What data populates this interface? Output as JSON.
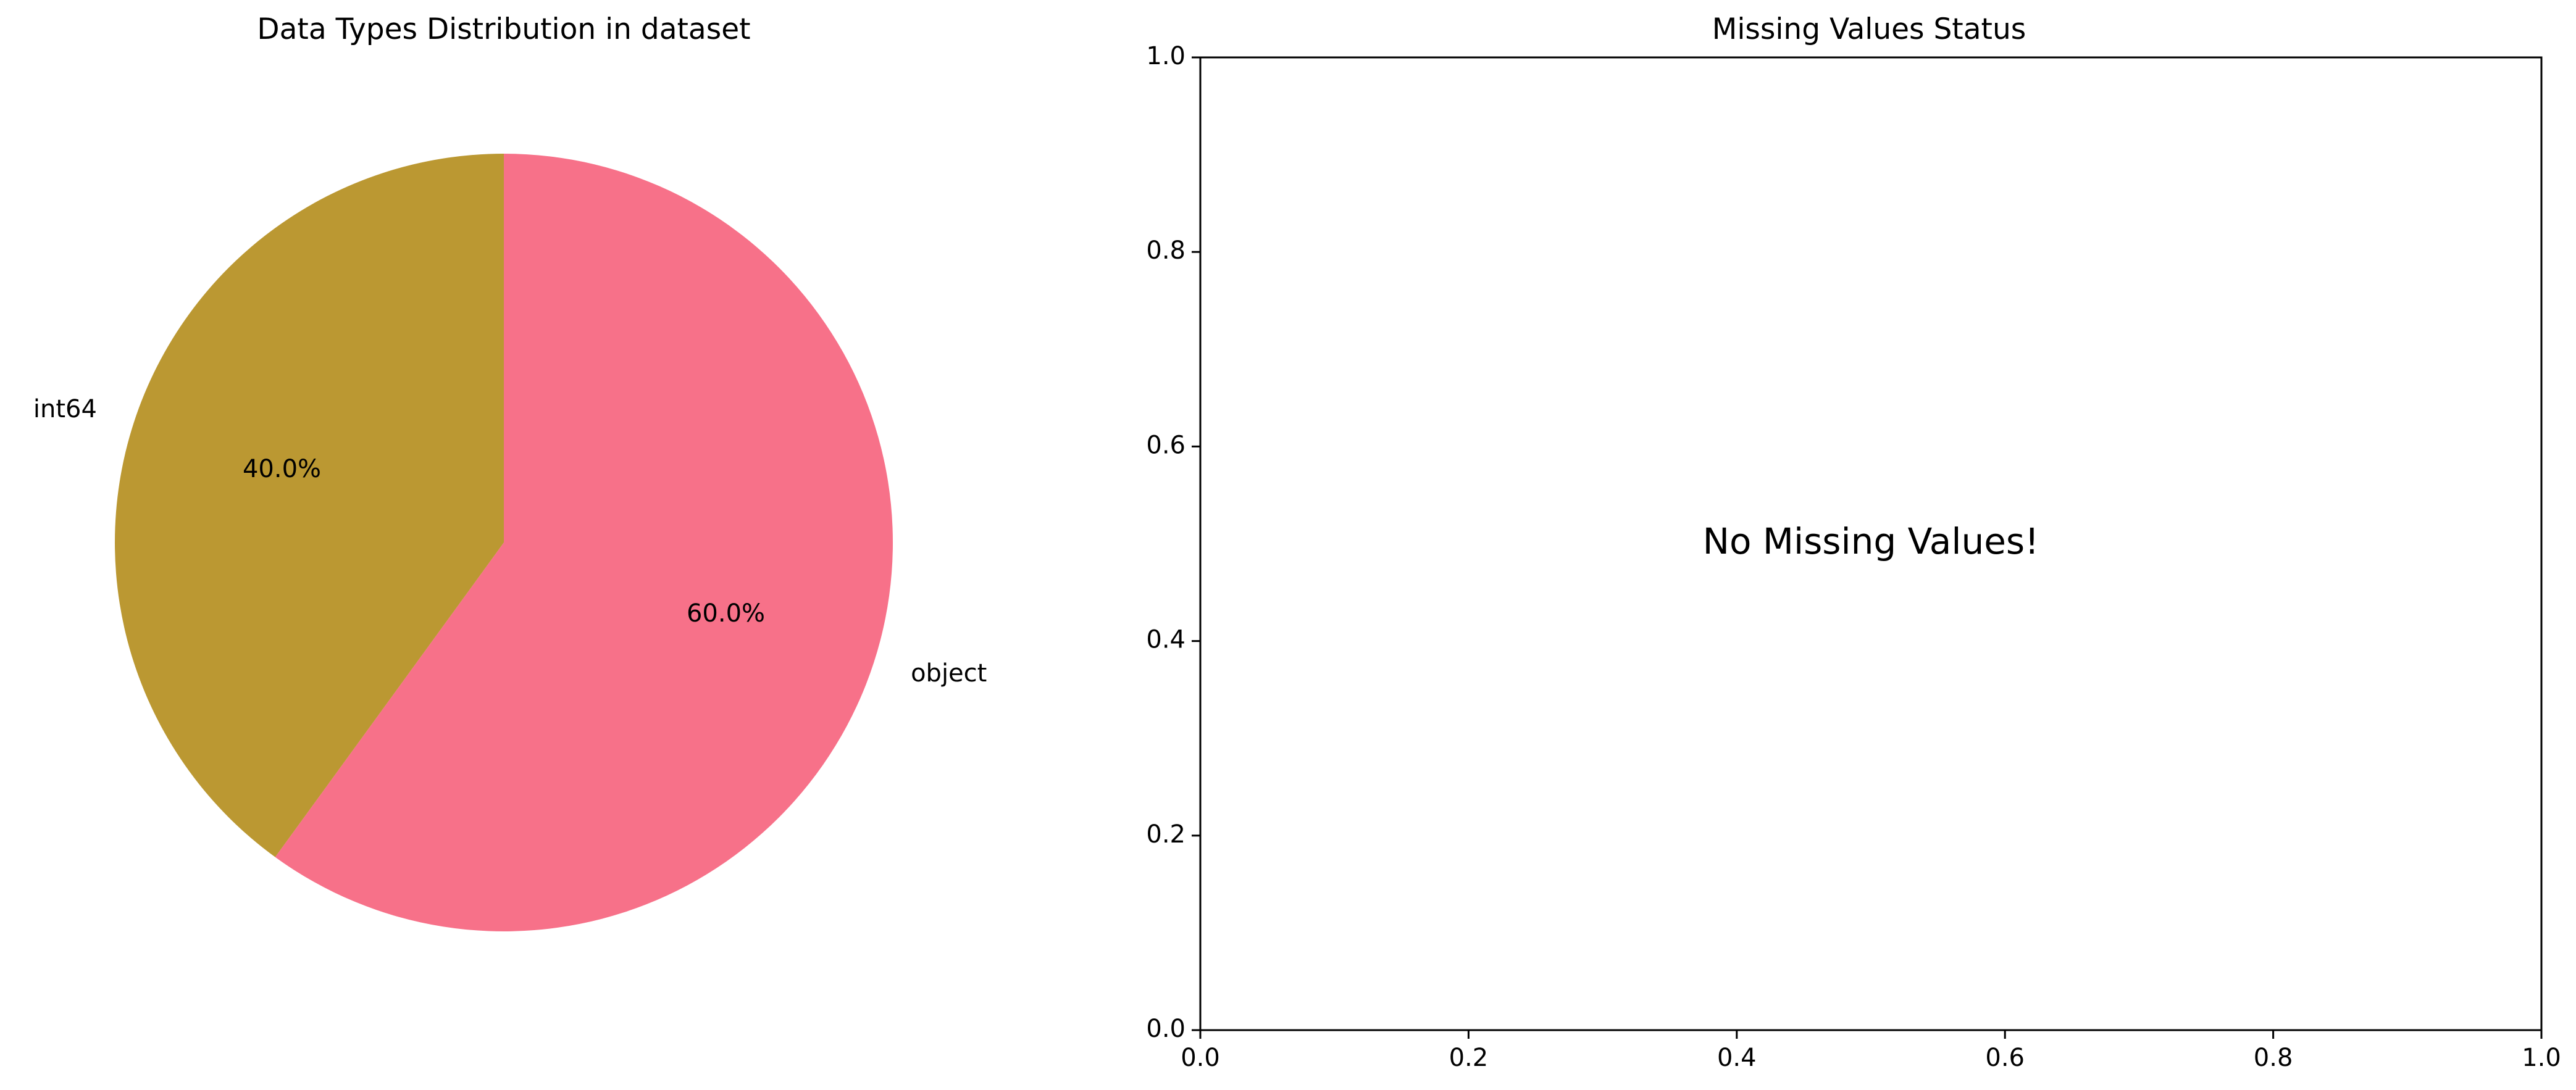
{
  "chart_data": [
    {
      "type": "pie",
      "title": "Data Types Distribution in dataset",
      "slices": [
        {
          "label": "object",
          "value": 60.0,
          "pct_label": "60.0%",
          "color": "#f77189"
        },
        {
          "label": "int64",
          "value": 40.0,
          "pct_label": "40.0%",
          "color": "#bb9832"
        }
      ],
      "start_angle_deg": 90,
      "direction": "clockwise"
    },
    {
      "type": "scatter",
      "title": "Missing Values Status",
      "series": [],
      "xlim": [
        0.0,
        1.0
      ],
      "ylim": [
        0.0,
        1.0
      ],
      "xticks": [
        "0.0",
        "0.2",
        "0.4",
        "0.6",
        "0.8",
        "1.0"
      ],
      "yticks": [
        "0.0",
        "0.2",
        "0.4",
        "0.6",
        "0.8",
        "1.0"
      ],
      "grid": false,
      "annotation": {
        "text": "No Missing Values!",
        "x": 0.5,
        "y": 0.5
      }
    }
  ]
}
